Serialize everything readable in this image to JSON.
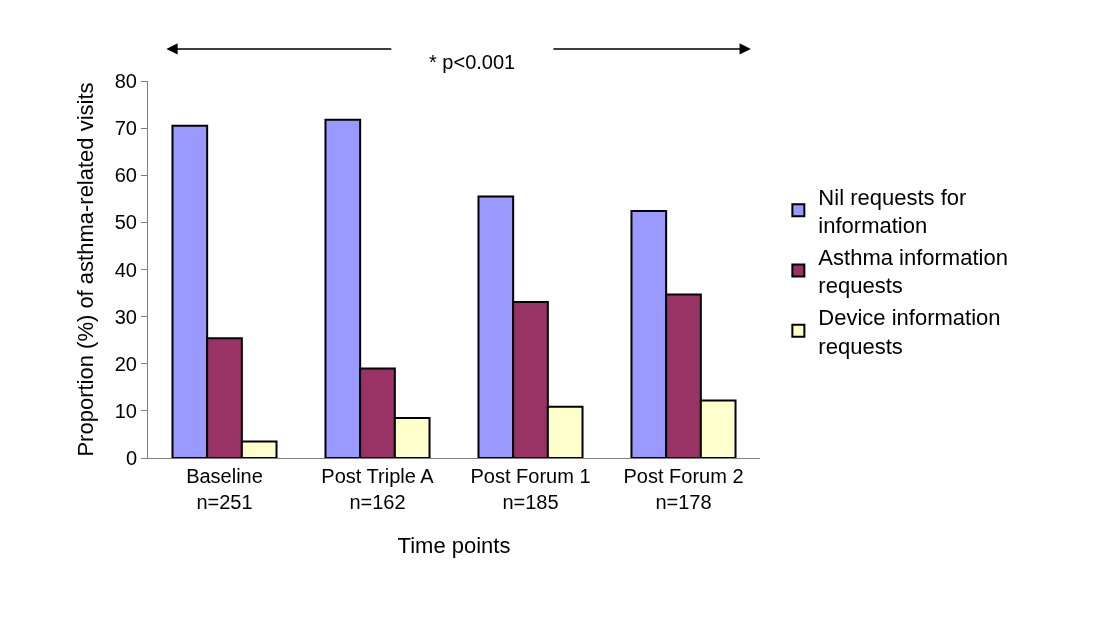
{
  "chart_data": {
    "type": "bar",
    "xlabel": "Time points",
    "ylabel": "Proportion (%) of asthma-related visits",
    "categories": [
      "Baseline\nn=251",
      "Post Triple A\nn=162",
      "Post Forum 1\nn=185",
      "Post Forum 2\nn=178"
    ],
    "series": [
      {
        "name": "Nil requests for\ninformation",
        "color": "#9999ff",
        "values": [
          70.5,
          71.8,
          55.5,
          52.4
        ]
      },
      {
        "name": "Asthma information\nrequests",
        "color": "#993366",
        "values": [
          25.4,
          19.0,
          33.1,
          34.7
        ]
      },
      {
        "name": "Device information\nrequests",
        "color": "#ffffcc",
        "values": [
          3.5,
          8.5,
          10.9,
          12.2
        ]
      }
    ],
    "ylim": [
      0,
      80
    ],
    "yticks": [
      0,
      10,
      20,
      30,
      40,
      50,
      60,
      70,
      80
    ],
    "annotations": [
      "* p<0.001"
    ],
    "legend": "right"
  }
}
